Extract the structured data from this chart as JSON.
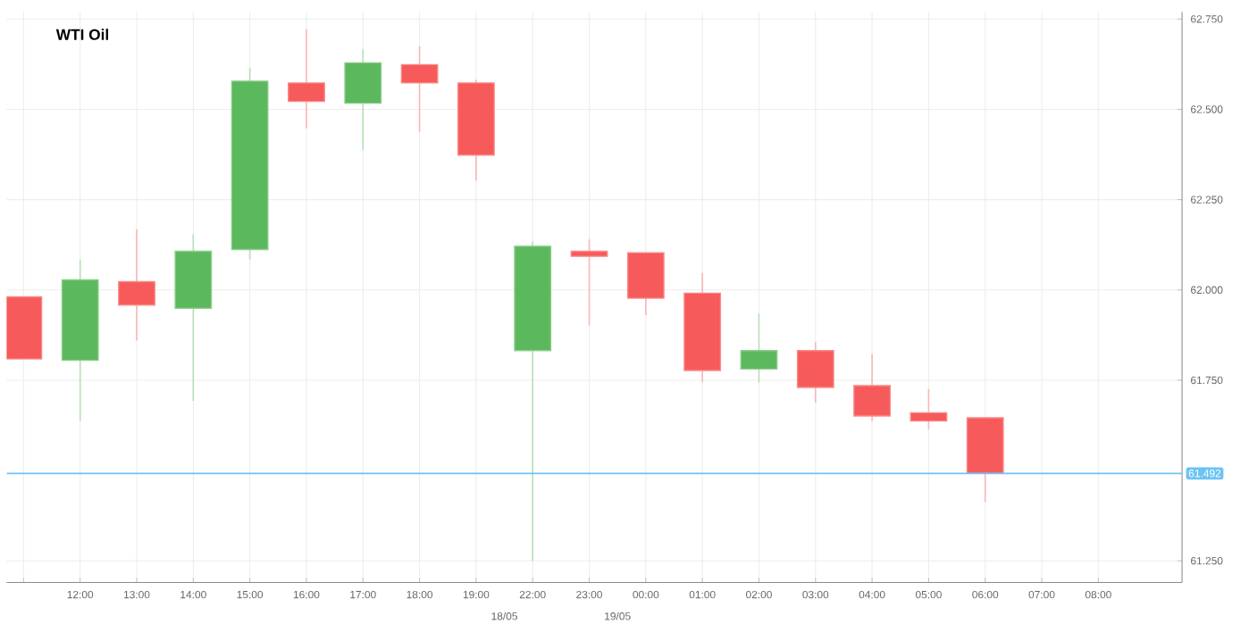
{
  "chart_data": {
    "type": "candlestick",
    "title": "WTI Oil",
    "categories": [
      null,
      "12:00",
      "13:00",
      "14:00",
      "15:00",
      "16:00",
      "17:00",
      "18:00",
      "19:00",
      "22:00",
      "23:00",
      "00:00",
      "01:00",
      "02:00",
      "03:00",
      "04:00",
      "05:00",
      "06:00",
      "07:00",
      "08:00"
    ],
    "ohlc": [
      [
        61.981,
        61.981,
        61.809,
        61.809
      ],
      [
        61.805,
        62.084,
        61.637,
        62.028
      ],
      [
        62.023,
        62.168,
        61.86,
        61.958
      ],
      [
        61.949,
        62.154,
        61.693,
        62.107
      ],
      [
        62.112,
        62.615,
        62.084,
        62.578
      ],
      [
        62.573,
        62.722,
        62.447,
        62.522
      ],
      [
        62.517,
        62.666,
        62.387,
        62.629
      ],
      [
        62.624,
        62.675,
        62.438,
        62.573
      ],
      [
        62.573,
        62.582,
        62.303,
        62.373
      ],
      [
        61.832,
        62.135,
        61.25,
        62.121
      ],
      [
        62.107,
        62.14,
        61.902,
        62.093
      ],
      [
        62.103,
        62.103,
        61.93,
        61.977
      ],
      [
        61.991,
        62.047,
        61.744,
        61.777
      ],
      [
        61.781,
        61.935,
        61.744,
        61.832
      ],
      [
        61.832,
        61.856,
        61.688,
        61.73
      ],
      [
        61.735,
        61.823,
        61.637,
        61.651
      ],
      [
        61.66,
        61.725,
        61.614,
        61.637
      ],
      [
        61.646,
        61.646,
        61.413,
        61.492
      ],
      null,
      null
    ],
    "colors": [
      "#f75a5a",
      "#5cb85c",
      "#f75a5a",
      "#5cb85c",
      "#5cb85c",
      "#f75a5a",
      "#5cb85c",
      "#f75a5a",
      "#f75a5a",
      "#5cb85c",
      "#f75a5a",
      "#f75a5a",
      "#f75a5a",
      "#5cb85c",
      "#f75a5a",
      "#f75a5a",
      "#f75a5a",
      "#f75a5a",
      null,
      null
    ],
    "ylim": [
      61.19,
      62.77
    ],
    "yticks": [
      {
        "value": 61.25,
        "label": "61.250"
      },
      {
        "value": 61.75,
        "label": "61.750"
      },
      {
        "value": 62.0,
        "label": "62.000"
      },
      {
        "value": 62.25,
        "label": "62.250"
      },
      {
        "value": 62.5,
        "label": "62.500"
      },
      {
        "value": 62.75,
        "label": "62.750"
      }
    ],
    "ref_lines": [
      {
        "axis": "y",
        "value": 61.492,
        "label": "61.492",
        "color": "#6cc3f5"
      }
    ],
    "annotations": [
      "18/05",
      "19/05"
    ],
    "grid": true
  }
}
